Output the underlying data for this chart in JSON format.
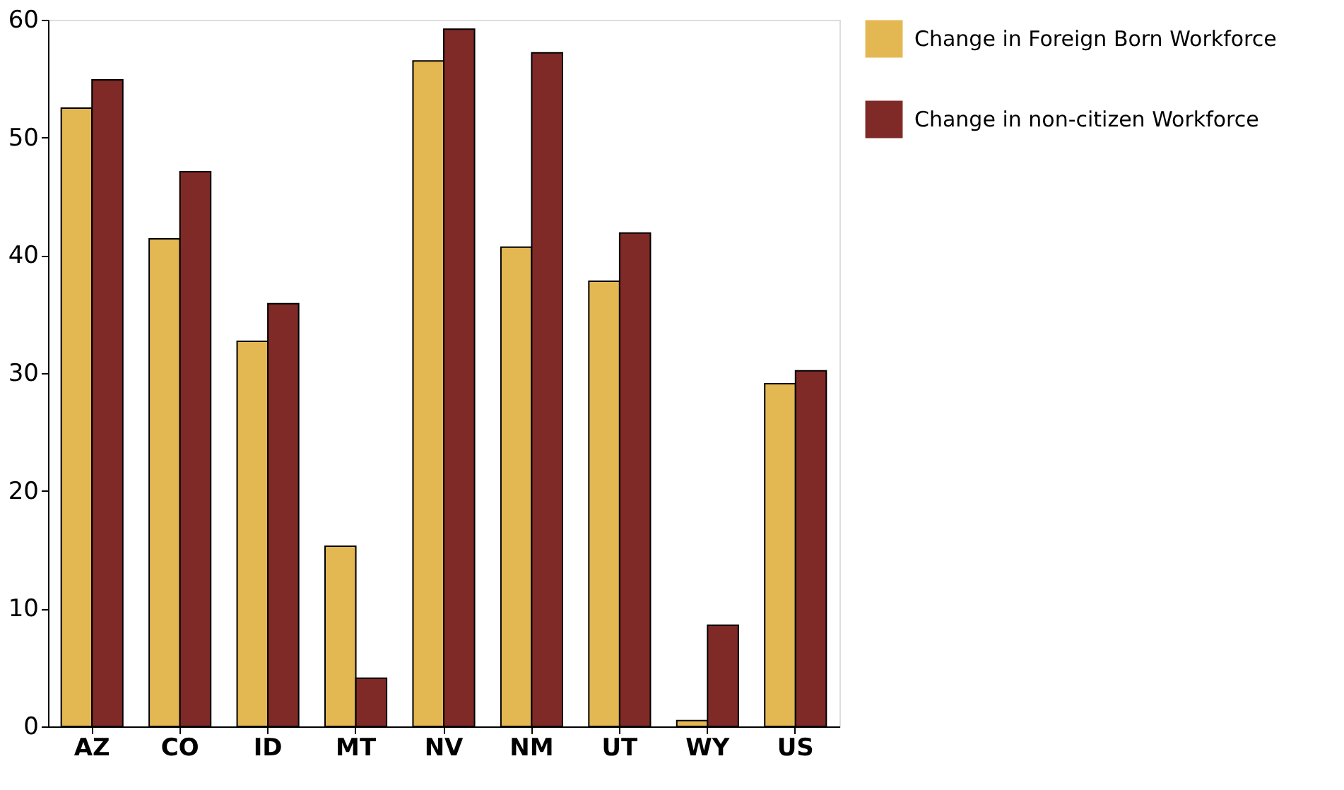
{
  "chart_data": {
    "type": "bar",
    "categories": [
      "AZ",
      "CO",
      "ID",
      "MT",
      "NV",
      "NM",
      "UT",
      "WY",
      "US"
    ],
    "series": [
      {
        "name": "Change in Foreign Born Workforce",
        "color": "#e3b752",
        "values": [
          52.5,
          41.4,
          32.7,
          15.3,
          56.5,
          40.7,
          37.8,
          0.5,
          29.1
        ]
      },
      {
        "name": "Change in non-citizen Workforce",
        "color": "#7f2a27",
        "values": [
          54.9,
          47.1,
          35.9,
          4.1,
          59.2,
          57.2,
          41.9,
          8.6,
          30.2
        ]
      }
    ],
    "ylim": [
      0,
      60
    ],
    "yticks": [
      0,
      10,
      20,
      30,
      40,
      50,
      60
    ],
    "grid": false,
    "legend": "right"
  }
}
